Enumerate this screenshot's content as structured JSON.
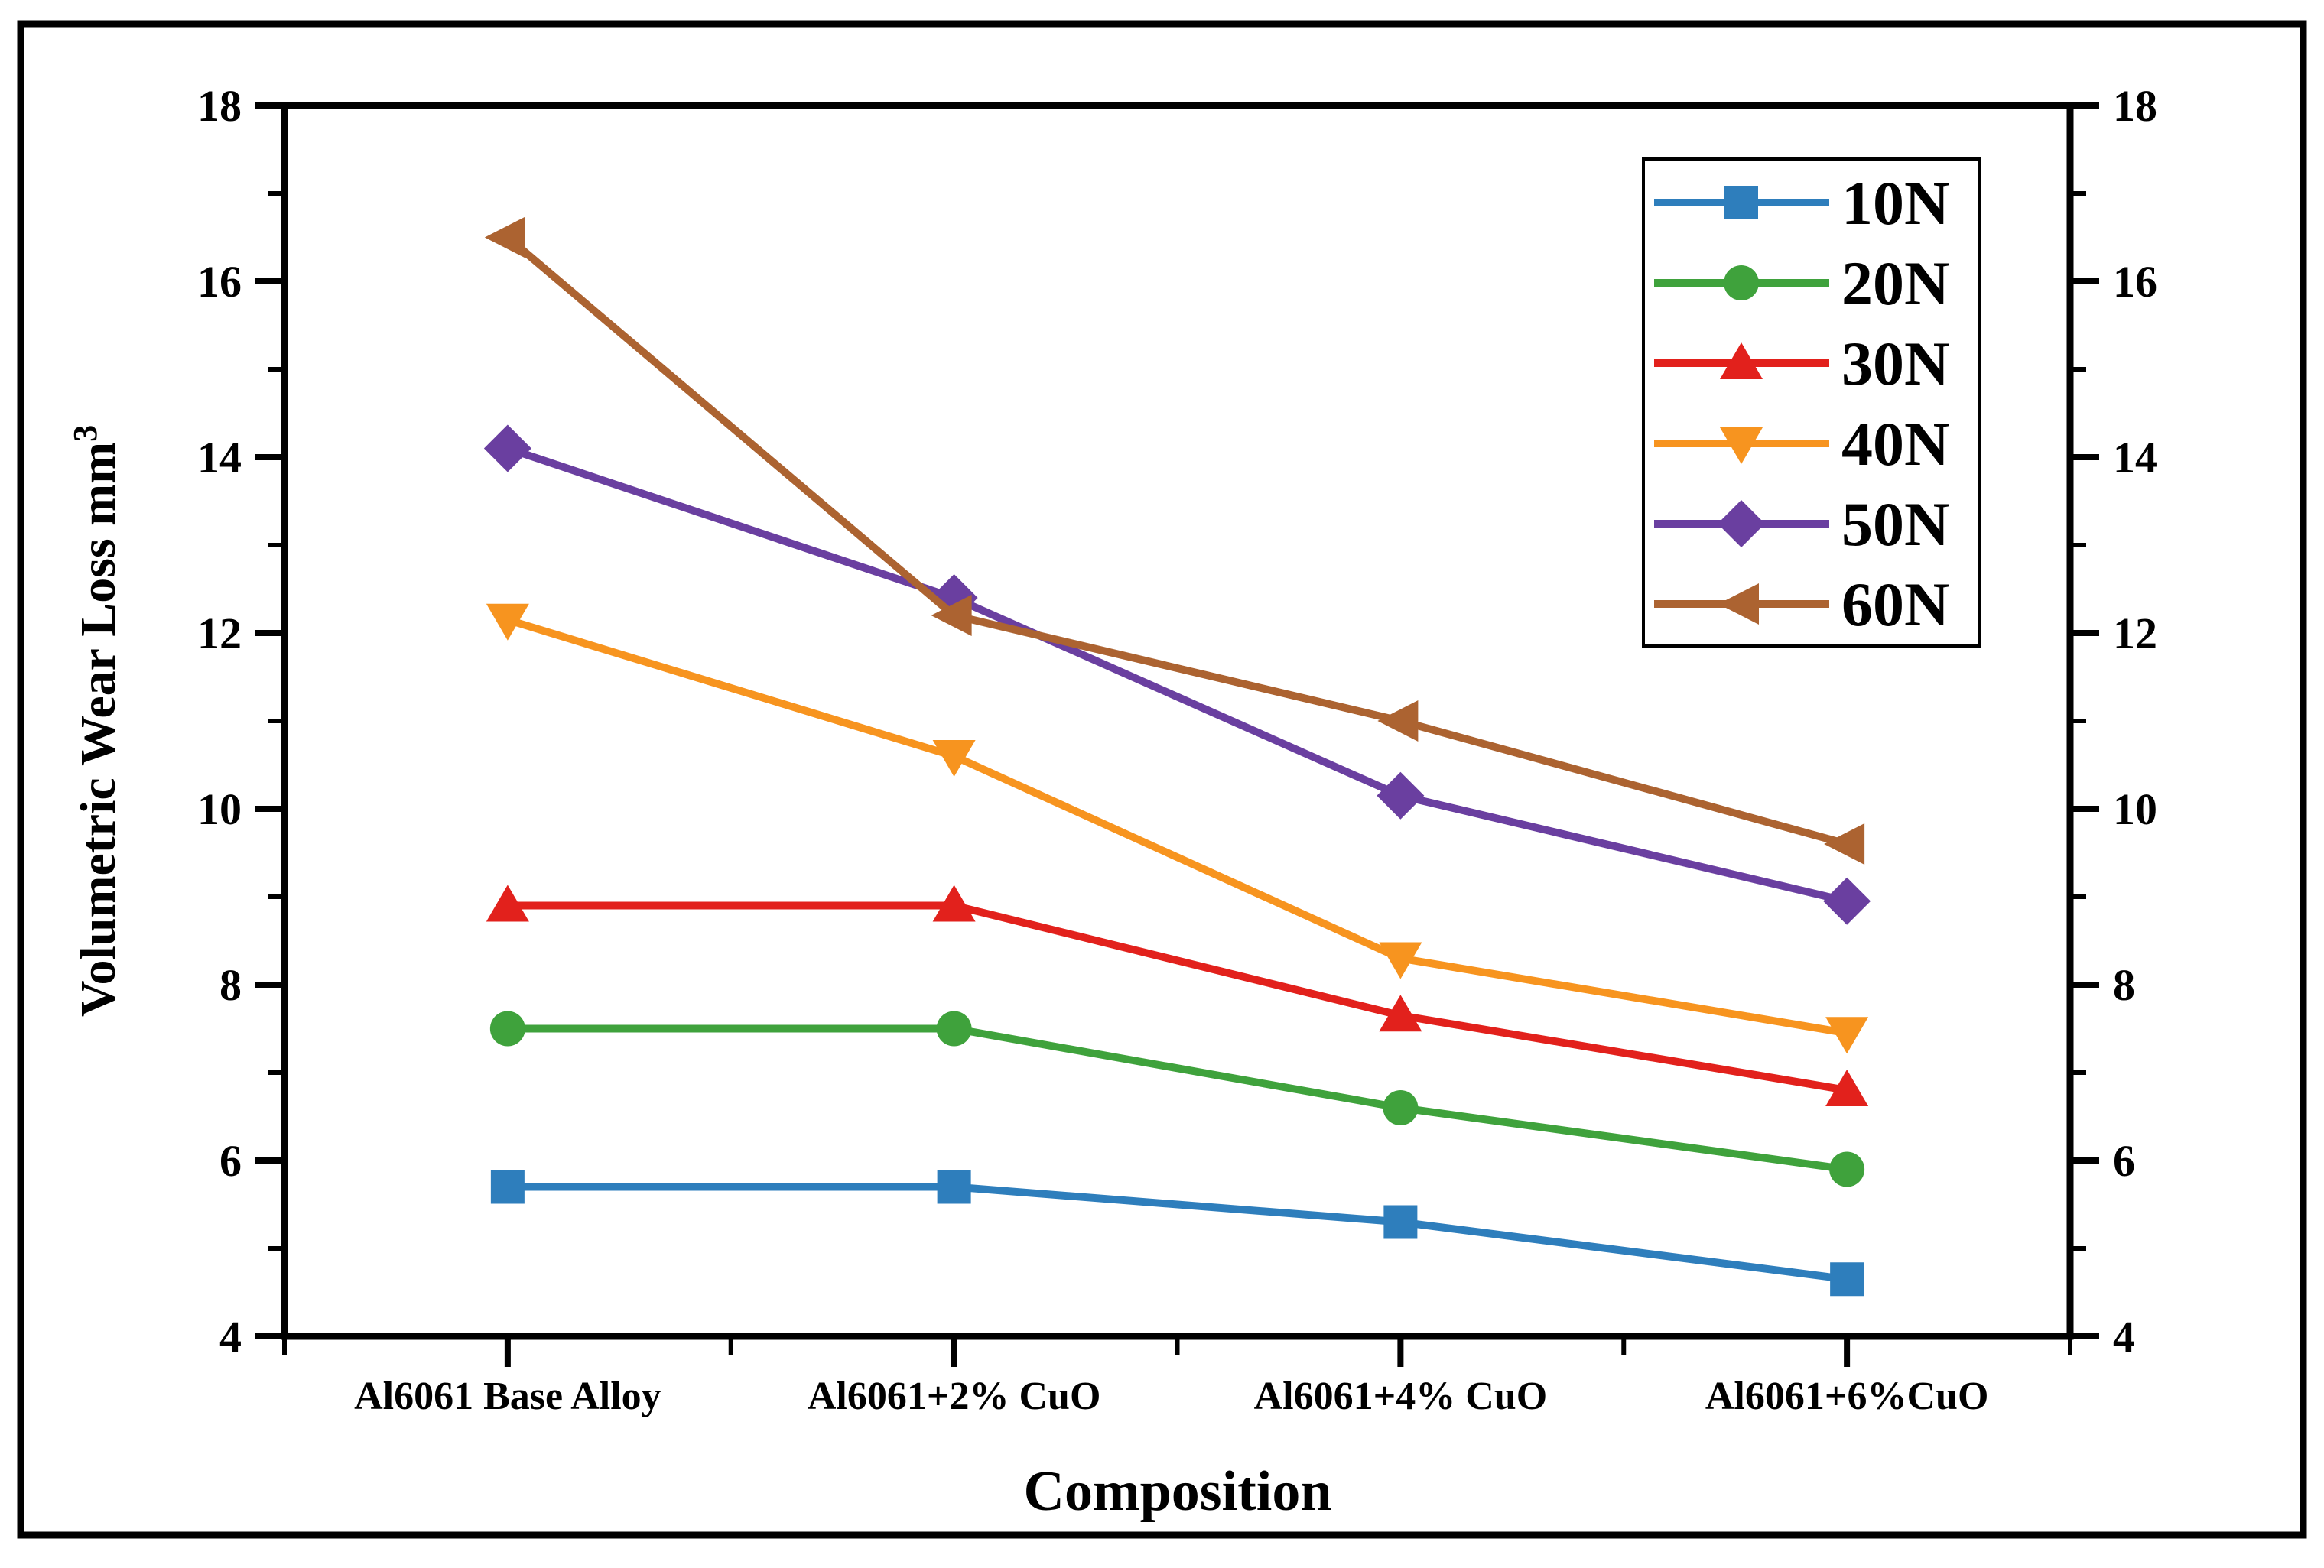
{
  "figure": {
    "background_color": "#ffffff",
    "outer_border_color": "#000000"
  },
  "chart_data": {
    "type": "line",
    "title": "",
    "xlabel": "Composition",
    "ylabel": "Volumetric Wear Loss mm",
    "ylabel_superscript": "3",
    "categories": [
      "Al6061 Base Alloy",
      "Al6061+2% CuO",
      "Al6061+4% CuO",
      "Al6061+6%CuO"
    ],
    "series": [
      {
        "name": "10N",
        "color": "#2E7EBC",
        "marker": "square",
        "values": [
          5.7,
          5.7,
          5.3,
          4.65
        ]
      },
      {
        "name": "20N",
        "color": "#3FA23C",
        "marker": "circle",
        "values": [
          7.5,
          7.5,
          6.6,
          5.9
        ]
      },
      {
        "name": "30N",
        "color": "#E2211C",
        "marker": "triangle-up",
        "values": [
          8.9,
          8.9,
          7.65,
          6.8
        ]
      },
      {
        "name": "40N",
        "color": "#F7941F",
        "marker": "triangle-down",
        "values": [
          12.15,
          10.6,
          8.3,
          7.45
        ]
      },
      {
        "name": "50N",
        "color": "#6A3FA0",
        "marker": "diamond",
        "values": [
          14.1,
          12.4,
          10.15,
          8.95
        ]
      },
      {
        "name": "60N",
        "color": "#AC6331",
        "marker": "triangle-left",
        "values": [
          16.5,
          12.2,
          11.0,
          9.6
        ]
      }
    ],
    "ylim": [
      4,
      18
    ],
    "ytick_major_step": 2,
    "ytick_minor_step": 1,
    "ytick_labels": [
      "4",
      "6",
      "8",
      "10",
      "12",
      "14",
      "16",
      "18"
    ],
    "axes_mirrored_right": true,
    "grid": false,
    "legend_position": "top-right",
    "legend_entries": [
      "10N",
      "20N",
      "30N",
      "40N",
      "50N",
      "60N"
    ]
  }
}
